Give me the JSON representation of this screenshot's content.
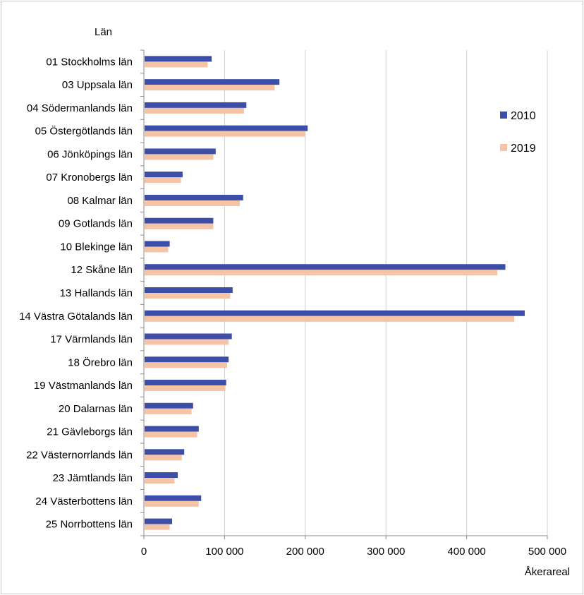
{
  "chart_data": {
    "type": "bar",
    "orientation": "horizontal",
    "title": "",
    "ylabel": "Län",
    "xlabel": "Åkerareal",
    "xlim": [
      0,
      500000
    ],
    "xticks": [
      0,
      100000,
      200000,
      300000,
      400000,
      500000
    ],
    "xtick_labels": [
      "0",
      "100 000",
      "200 000",
      "300 000",
      "400 000",
      "500 000"
    ],
    "grid": "vertical",
    "legend_position": "right",
    "categories": [
      "01 Stockholms län",
      "03 Uppsala län",
      "04 Södermanlands län",
      "05 Östergötlands län",
      "06 Jönköpings län",
      "07 Kronobergs län",
      "08 Kalmar län",
      "09 Gotlands län",
      "10 Blekinge län",
      "12 Skåne län",
      "13 Hallands län",
      "14 Västra Götalands län",
      "17 Värmlands län",
      "18 Örebro län",
      "19 Västmanlands län",
      "20 Dalarnas län",
      "21 Gävleborgs län",
      "22 Västernorrlands län",
      "23 Jämtlands län",
      "24 Västerbottens län",
      "25 Norrbottens län"
    ],
    "series": [
      {
        "name": "2010",
        "color": "#3c4ea8",
        "values": [
          84000,
          168000,
          127000,
          203000,
          89000,
          48000,
          123000,
          86000,
          32000,
          448000,
          110000,
          472000,
          109000,
          105000,
          102000,
          61000,
          68000,
          50000,
          42000,
          71000,
          35000
        ]
      },
      {
        "name": "2019",
        "color": "#f5c3a5",
        "values": [
          79000,
          162000,
          124000,
          200000,
          86000,
          46000,
          119000,
          86000,
          30000,
          438000,
          107000,
          459000,
          105000,
          103000,
          101000,
          59000,
          66000,
          47000,
          38000,
          68000,
          32000
        ]
      }
    ]
  }
}
